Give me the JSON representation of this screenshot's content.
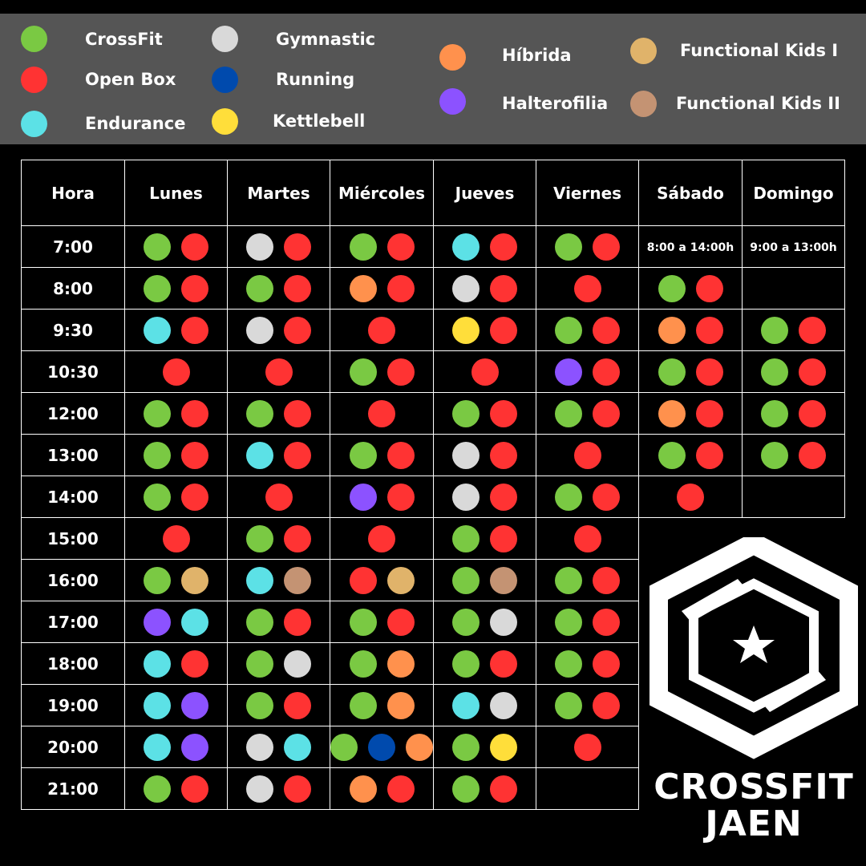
{
  "colors": {
    "crossfit": "#7AC943",
    "openbox": "#FF3333",
    "endurance": "#5CE1E6",
    "gymnastic": "#D9D9D9",
    "running": "#004AAD",
    "kettlebell": "#FFDE3A",
    "hibrida": "#FF914D",
    "halterofilia": "#8C52FF",
    "kids1": "#E0B36A",
    "kids2": "#C49373"
  },
  "legend": [
    {
      "key": "crossfit",
      "label": "CrossFit"
    },
    {
      "key": "openbox",
      "label": "Open Box"
    },
    {
      "key": "endurance",
      "label": "Endurance"
    },
    {
      "key": "gymnastic",
      "label": "Gymnastic"
    },
    {
      "key": "running",
      "label": "Running"
    },
    {
      "key": "kettlebell",
      "label": "Kettlebell"
    },
    {
      "key": "hibrida",
      "label": "Híbrida"
    },
    {
      "key": "halterofilia",
      "label": "Halterofilia"
    },
    {
      "key": "kids1",
      "label": "Functional Kids I"
    },
    {
      "key": "kids2",
      "label": "Functional Kids II"
    }
  ],
  "schedule": {
    "headers": [
      "Hora",
      "Lunes",
      "Martes",
      "Miércoles",
      "Jueves",
      "Viernes",
      "Sábado",
      "Domingo"
    ],
    "rows": [
      {
        "time": "7:00",
        "cells": [
          [
            "crossfit",
            "openbox"
          ],
          [
            "gymnastic",
            "openbox"
          ],
          [
            "crossfit",
            "openbox"
          ],
          [
            "endurance",
            "openbox"
          ],
          [
            "crossfit",
            "openbox"
          ],
          {
            "text": "8:00 a 14:00h"
          },
          {
            "text": "9:00 a 13:00h"
          }
        ]
      },
      {
        "time": "8:00",
        "cells": [
          [
            "crossfit",
            "openbox"
          ],
          [
            "crossfit",
            "openbox"
          ],
          [
            "hibrida",
            "openbox"
          ],
          [
            "gymnastic",
            "openbox"
          ],
          [
            "openbox"
          ],
          [
            "crossfit",
            "openbox"
          ],
          []
        ]
      },
      {
        "time": "9:30",
        "cells": [
          [
            "endurance",
            "openbox"
          ],
          [
            "gymnastic",
            "openbox"
          ],
          [
            "openbox"
          ],
          [
            "kettlebell",
            "openbox"
          ],
          [
            "crossfit",
            "openbox"
          ],
          [
            "hibrida",
            "openbox"
          ],
          [
            "crossfit",
            "openbox"
          ]
        ]
      },
      {
        "time": "10:30",
        "cells": [
          [
            "openbox"
          ],
          [
            "openbox"
          ],
          [
            "crossfit",
            "openbox"
          ],
          [
            "openbox"
          ],
          [
            "halterofilia",
            "openbox"
          ],
          [
            "crossfit",
            "openbox"
          ],
          [
            "crossfit",
            "openbox"
          ]
        ]
      },
      {
        "time": "12:00",
        "cells": [
          [
            "crossfit",
            "openbox"
          ],
          [
            "crossfit",
            "openbox"
          ],
          [
            "openbox"
          ],
          [
            "crossfit",
            "openbox"
          ],
          [
            "crossfit",
            "openbox"
          ],
          [
            "hibrida",
            "openbox"
          ],
          [
            "crossfit",
            "openbox"
          ]
        ]
      },
      {
        "time": "13:00",
        "cells": [
          [
            "crossfit",
            "openbox"
          ],
          [
            "endurance",
            "openbox"
          ],
          [
            "crossfit",
            "openbox"
          ],
          [
            "gymnastic",
            "openbox"
          ],
          [
            "openbox"
          ],
          [
            "crossfit",
            "openbox"
          ],
          [
            "crossfit",
            "openbox"
          ]
        ]
      },
      {
        "time": "14:00",
        "cells": [
          [
            "crossfit",
            "openbox"
          ],
          [
            "openbox"
          ],
          [
            "halterofilia",
            "openbox"
          ],
          [
            "gymnastic",
            "openbox"
          ],
          [
            "crossfit",
            "openbox"
          ],
          [
            "openbox"
          ],
          []
        ]
      },
      {
        "time": "15:00",
        "cells": [
          [
            "openbox"
          ],
          [
            "crossfit",
            "openbox"
          ],
          [
            "openbox"
          ],
          [
            "crossfit",
            "openbox"
          ],
          [
            "openbox"
          ]
        ]
      },
      {
        "time": "16:00",
        "cells": [
          [
            "crossfit",
            "kids1"
          ],
          [
            "endurance",
            "kids2"
          ],
          [
            "openbox",
            "kids1"
          ],
          [
            "crossfit",
            "kids2"
          ],
          [
            "crossfit",
            "openbox"
          ]
        ]
      },
      {
        "time": "17:00",
        "cells": [
          [
            "halterofilia",
            "endurance"
          ],
          [
            "crossfit",
            "openbox"
          ],
          [
            "crossfit",
            "openbox"
          ],
          [
            "crossfit",
            "gymnastic"
          ],
          [
            "crossfit",
            "openbox"
          ]
        ]
      },
      {
        "time": "18:00",
        "cells": [
          [
            "endurance",
            "openbox"
          ],
          [
            "crossfit",
            "gymnastic"
          ],
          [
            "crossfit",
            "hibrida"
          ],
          [
            "crossfit",
            "openbox"
          ],
          [
            "crossfit",
            "openbox"
          ]
        ]
      },
      {
        "time": "19:00",
        "cells": [
          [
            "endurance",
            "halterofilia"
          ],
          [
            "crossfit",
            "openbox"
          ],
          [
            "crossfit",
            "hibrida"
          ],
          [
            "endurance",
            "gymnastic"
          ],
          [
            "crossfit",
            "openbox"
          ]
        ]
      },
      {
        "time": "20:00",
        "cells": [
          [
            "endurance",
            "halterofilia"
          ],
          [
            "gymnastic",
            "endurance"
          ],
          [
            "crossfit",
            "running",
            "hibrida"
          ],
          [
            "crossfit",
            "kettlebell"
          ],
          [
            "openbox"
          ]
        ]
      },
      {
        "time": "21:00",
        "cells": [
          [
            "crossfit",
            "openbox"
          ],
          [
            "gymnastic",
            "openbox"
          ],
          [
            "hibrida",
            "openbox"
          ],
          [
            "crossfit",
            "openbox"
          ],
          []
        ]
      }
    ]
  },
  "logo": {
    "line1": "CROSSFIT",
    "line2": "JAEN"
  }
}
